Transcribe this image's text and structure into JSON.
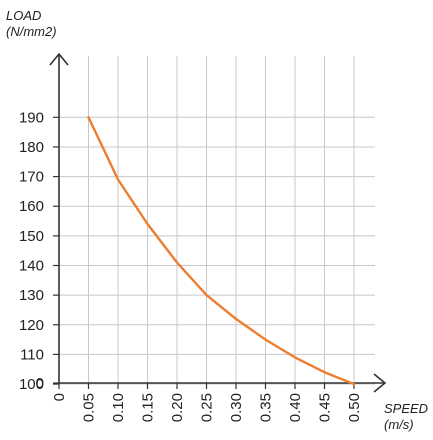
{
  "chart_data": {
    "type": "line",
    "ylabel_lines": [
      "LOAD",
      "(N/mm2)"
    ],
    "xlabel_lines": [
      "SPEED",
      "(m/s)"
    ],
    "xlim": [
      0,
      0.5
    ],
    "ylim": [
      0,
      190
    ],
    "x_ticks": [
      "0",
      "0.05",
      "0.10",
      "0.15",
      "0.20",
      "0.25",
      "0.30",
      "0.35",
      "0.40",
      "0.45",
      "0.50"
    ],
    "y_ticks": [
      "0",
      "100",
      "110",
      "120",
      "130",
      "140",
      "150",
      "160",
      "170",
      "180",
      "190"
    ],
    "y_tick_values": [
      90,
      100,
      110,
      120,
      130,
      140,
      150,
      160,
      170,
      180,
      190
    ],
    "axis_break": true,
    "grid": true,
    "series": [
      {
        "color": "#ed7d31",
        "x": [
          0.05,
          0.1,
          0.15,
          0.2,
          0.25,
          0.3,
          0.35,
          0.4,
          0.45,
          0.5
        ],
        "y": [
          190,
          169,
          154,
          141,
          130,
          122,
          115,
          109,
          104,
          100
        ]
      }
    ]
  }
}
